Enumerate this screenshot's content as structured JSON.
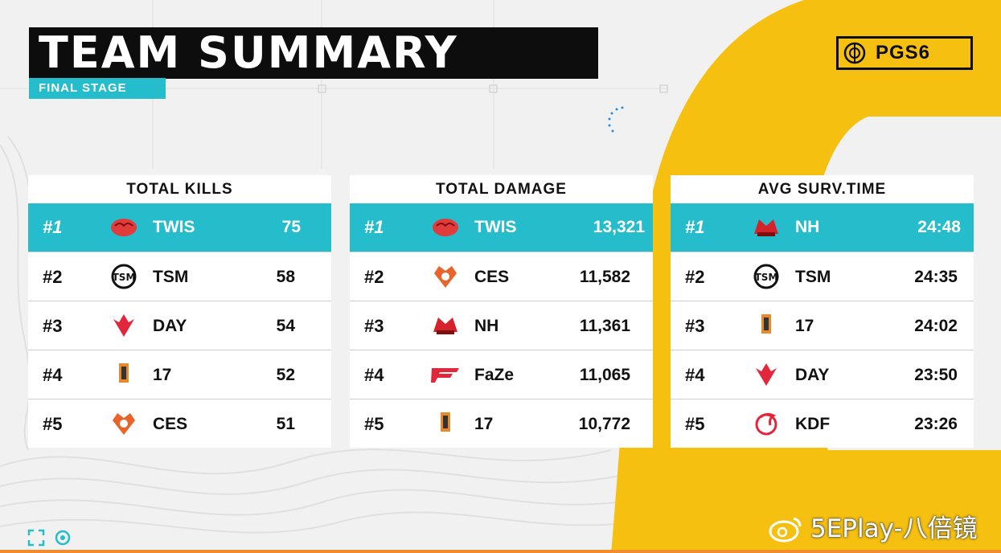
{
  "header": {
    "title": "TEAM SUMMARY",
    "stage": "FINAL STAGE",
    "event_logo": "PGS6"
  },
  "colors": {
    "accent_teal": "#25bccb",
    "brand_yellow": "#f6c010",
    "header_black": "#0d0d0d"
  },
  "panels": [
    {
      "title": "TOTAL KILLS",
      "rows": [
        {
          "rank": "#1",
          "team": "TWIS",
          "value": "75",
          "logo": "twis-brain-logo"
        },
        {
          "rank": "#2",
          "team": "TSM",
          "value": "58",
          "logo": "tsm-logo"
        },
        {
          "rank": "#3",
          "team": "DAY",
          "value": "54",
          "logo": "day-logo"
        },
        {
          "rank": "#4",
          "team": "17",
          "value": "52",
          "logo": "17-gaming-logo"
        },
        {
          "rank": "#5",
          "team": "CES",
          "value": "51",
          "logo": "ces-logo"
        }
      ]
    },
    {
      "title": "TOTAL DAMAGE",
      "rows": [
        {
          "rank": "#1",
          "team": "TWIS",
          "value": "13,321",
          "logo": "twis-brain-logo"
        },
        {
          "rank": "#2",
          "team": "CES",
          "value": "11,582",
          "logo": "ces-logo"
        },
        {
          "rank": "#3",
          "team": "NH",
          "value": "11,361",
          "logo": "nh-logo"
        },
        {
          "rank": "#4",
          "team": "FaZe",
          "value": "11,065",
          "logo": "faze-logo"
        },
        {
          "rank": "#5",
          "team": "17",
          "value": "10,772",
          "logo": "17-gaming-logo"
        }
      ]
    },
    {
      "title": "AVG SURV.TIME",
      "rows": [
        {
          "rank": "#1",
          "team": "NH",
          "value": "24:48",
          "logo": "nh-logo"
        },
        {
          "rank": "#2",
          "team": "TSM",
          "value": "24:35",
          "logo": "tsm-logo"
        },
        {
          "rank": "#3",
          "team": "17",
          "value": "24:02",
          "logo": "17-gaming-logo"
        },
        {
          "rank": "#4",
          "team": "DAY",
          "value": "23:50",
          "logo": "day-logo"
        },
        {
          "rank": "#5",
          "team": "KDF",
          "value": "23:26",
          "logo": "kdf-logo"
        }
      ]
    }
  ],
  "watermark": "5EPlay-八倍镜"
}
